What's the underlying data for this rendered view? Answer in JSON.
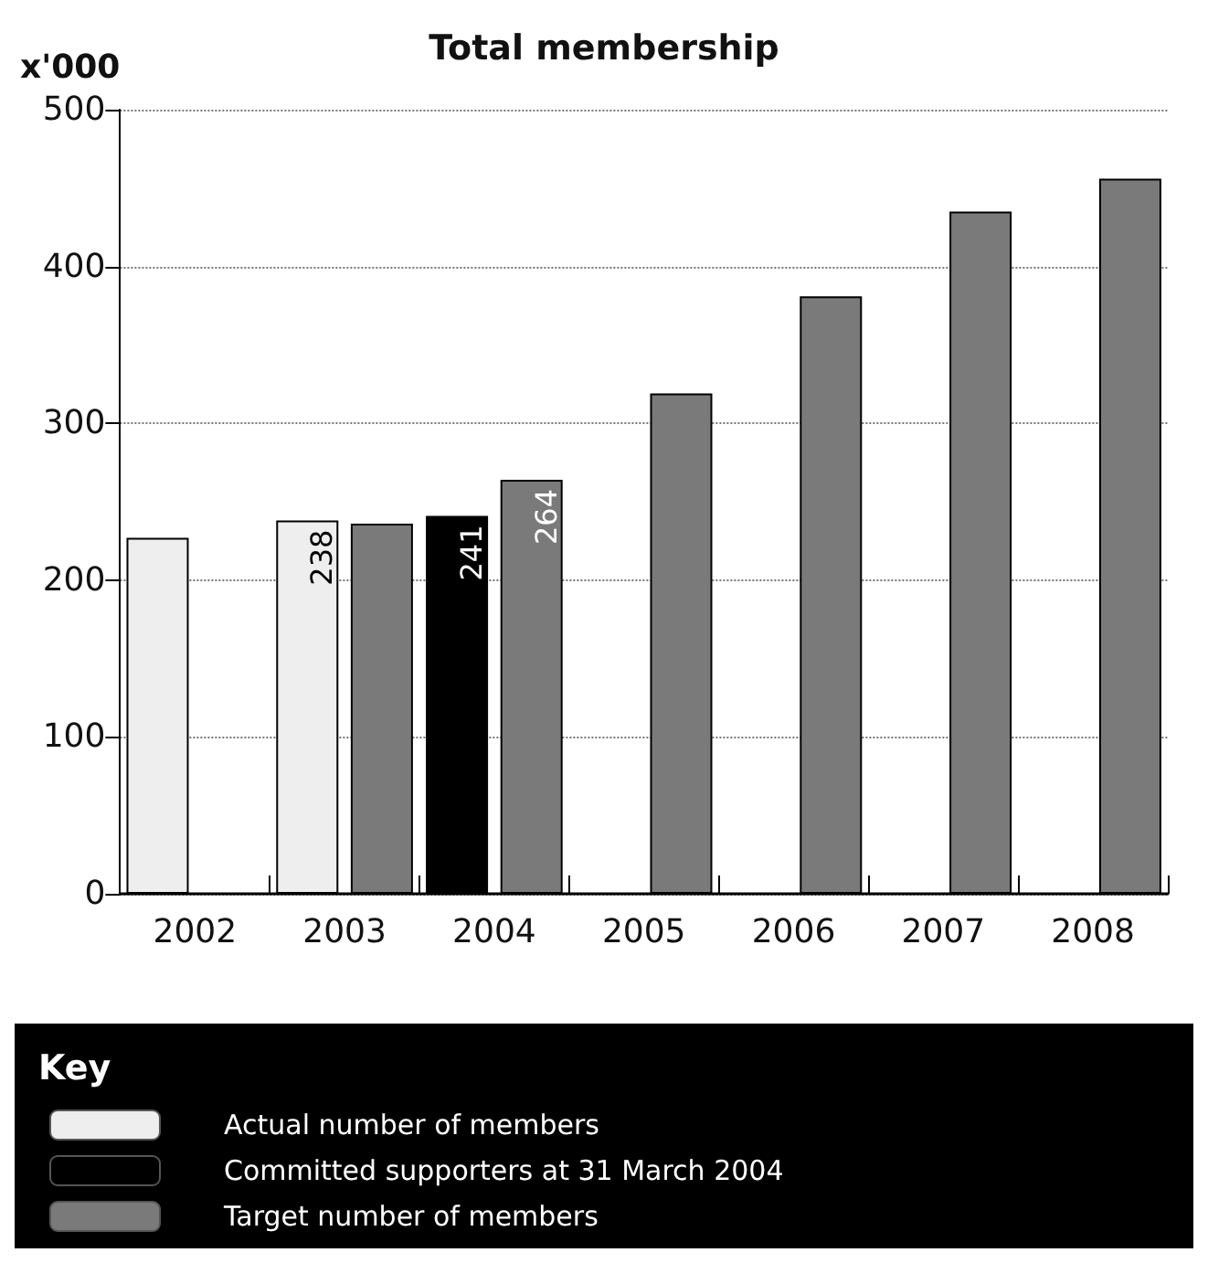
{
  "chart_data": {
    "type": "bar",
    "title": "Total membership",
    "ylabel": "x'000",
    "legend_title": "Key",
    "categories": [
      "2002",
      "2003",
      "2004",
      "2005",
      "2006",
      "2007",
      "2008"
    ],
    "series": [
      {
        "name": "Actual number of members",
        "color": "#eeeeee",
        "values": [
          227,
          238,
          null,
          null,
          null,
          null,
          null
        ],
        "value_labels": [
          null,
          "238",
          null,
          null,
          null,
          null,
          null
        ]
      },
      {
        "name": "Committed supporters at 31 March 2004",
        "color": "#000000",
        "values": [
          null,
          null,
          241,
          null,
          null,
          null,
          null
        ],
        "value_labels": [
          null,
          null,
          "241",
          null,
          null,
          null,
          null
        ]
      },
      {
        "name": "Target number of members",
        "color": "#7a7a7a",
        "values": [
          null,
          236,
          264,
          319,
          381,
          435,
          456
        ],
        "value_labels": [
          null,
          null,
          "264",
          null,
          null,
          null,
          null
        ]
      }
    ],
    "ylim": [
      0,
      500
    ],
    "yticks": [
      0,
      100,
      200,
      300,
      400,
      500
    ],
    "grid": "y",
    "legend": "bottom"
  }
}
